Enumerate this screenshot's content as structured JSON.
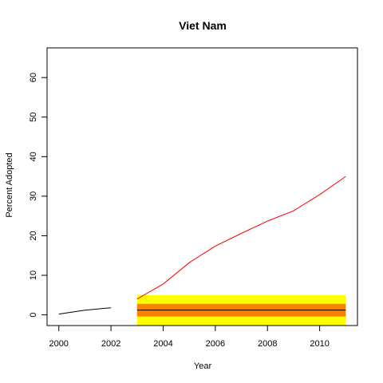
{
  "chart_data": {
    "type": "line",
    "title": "Viet Nam",
    "xlabel": "Year",
    "ylabel": "Percent Adopted",
    "xlim": [
      1999.55,
      2011.45
    ],
    "ylim": [
      -2.7,
      67.5
    ],
    "x_ticks": [
      "2000",
      "2002",
      "2004",
      "2006",
      "2008",
      "2010"
    ],
    "y_ticks": [
      "0",
      "10",
      "20",
      "30",
      "40",
      "50",
      "60"
    ],
    "grid": false,
    "legend": "none",
    "series": [
      {
        "color": "#000000",
        "x": [
          2000,
          2001,
          2002
        ],
        "y": [
          0.2,
          1.2,
          1.8
        ]
      },
      {
        "color": "#ff0000",
        "x": [
          2003,
          2004,
          2005,
          2006,
          2007,
          2008,
          2009,
          2010,
          2011
        ],
        "y": [
          4.0,
          7.8,
          13.2,
          17.4,
          20.6,
          23.7,
          26.3,
          30.4,
          35.0
        ]
      }
    ],
    "bands": [
      {
        "color": "#ffff00",
        "x": [
          2003,
          2011
        ],
        "y": [
          -2.7,
          5.0
        ]
      },
      {
        "color": "#ff8000",
        "x": [
          2003,
          2011
        ],
        "y": [
          -0.4,
          2.8
        ]
      }
    ],
    "reference_line": {
      "color": "#000000",
      "x": [
        2003,
        2011
      ],
      "y": 1.2
    }
  }
}
